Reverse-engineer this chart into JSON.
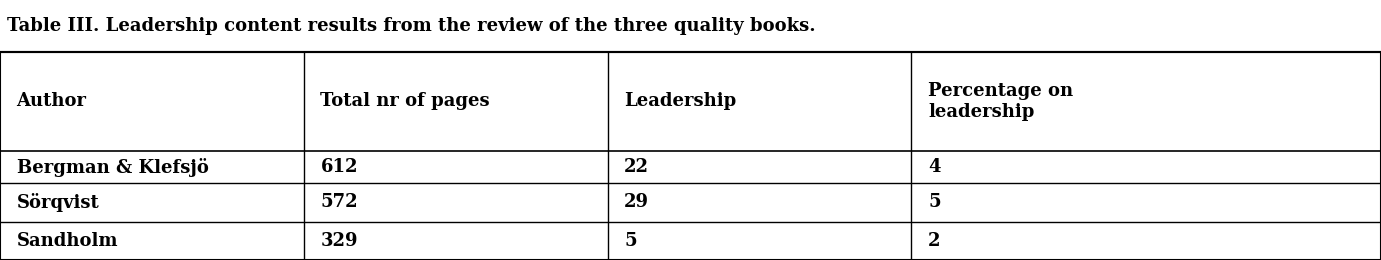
{
  "title": "Table III. Leadership content results from the review of the three quality books.",
  "columns": [
    "Author",
    "Total nr of pages",
    "Leadership",
    "Percentage on\nleadership"
  ],
  "rows": [
    [
      "Bergman & Klefsjö",
      "612",
      "22",
      "4"
    ],
    [
      "Sörqvist",
      "572",
      "29",
      "5"
    ],
    [
      "Sandholm",
      "329",
      "5",
      "2"
    ]
  ],
  "background_color": "#ffffff",
  "text_color": "#000000",
  "title_fontsize": 13,
  "header_fontsize": 13,
  "cell_fontsize": 13,
  "figsize": [
    13.81,
    2.6
  ],
  "dpi": 100
}
